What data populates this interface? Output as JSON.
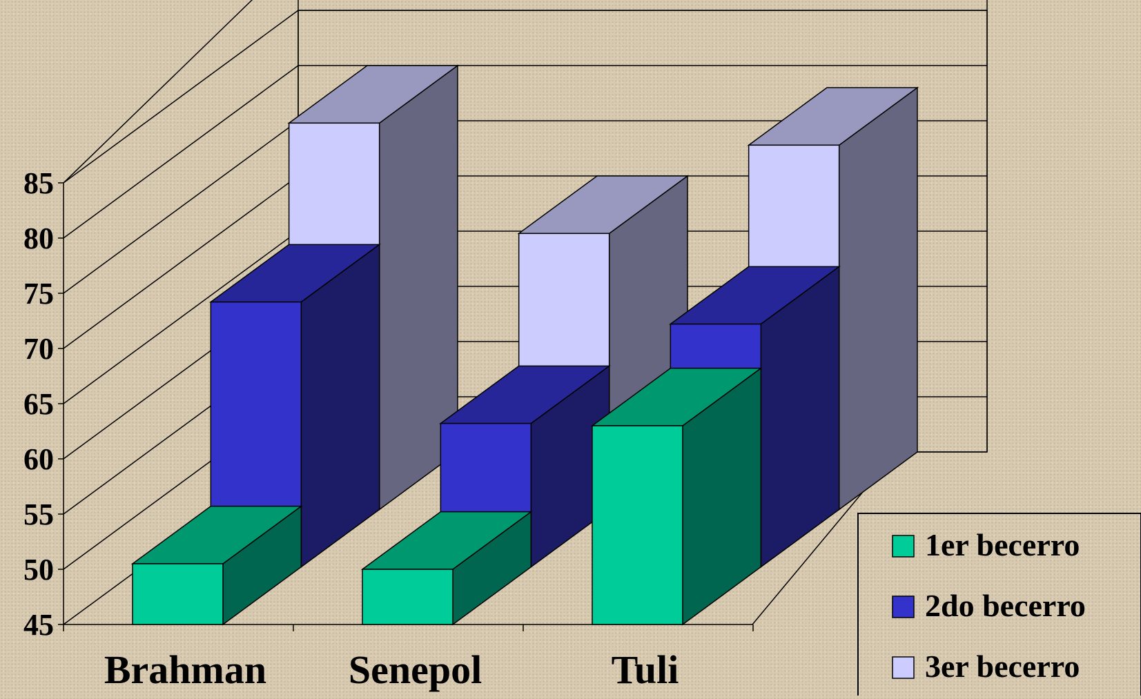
{
  "chart_data": {
    "type": "bar",
    "subtype": "3d-grouped-depth",
    "categories": [
      "Brahman",
      "Senepol",
      "Tuli"
    ],
    "series": [
      {
        "name": "1er becerro",
        "values": [
          50.5,
          50,
          63
        ],
        "color": "#00cc99",
        "side_color": "#006650",
        "top_color": "#00996f"
      },
      {
        "name": "2do becerro",
        "values": [
          69,
          58,
          67
        ],
        "color": "#3333cc",
        "side_color": "#1c1c66",
        "top_color": "#262699"
      },
      {
        "name": "3er becerro",
        "values": [
          80,
          70,
          78
        ],
        "color": "#ccccff",
        "side_color": "#666680",
        "top_color": "#9999c0"
      }
    ],
    "ylim": [
      45,
      85
    ],
    "yticks": [
      45,
      50,
      55,
      60,
      65,
      70,
      75,
      80,
      85
    ],
    "xlabel": "",
    "ylabel": "",
    "title": "",
    "grid": true,
    "legend_position": "bottom-right"
  }
}
